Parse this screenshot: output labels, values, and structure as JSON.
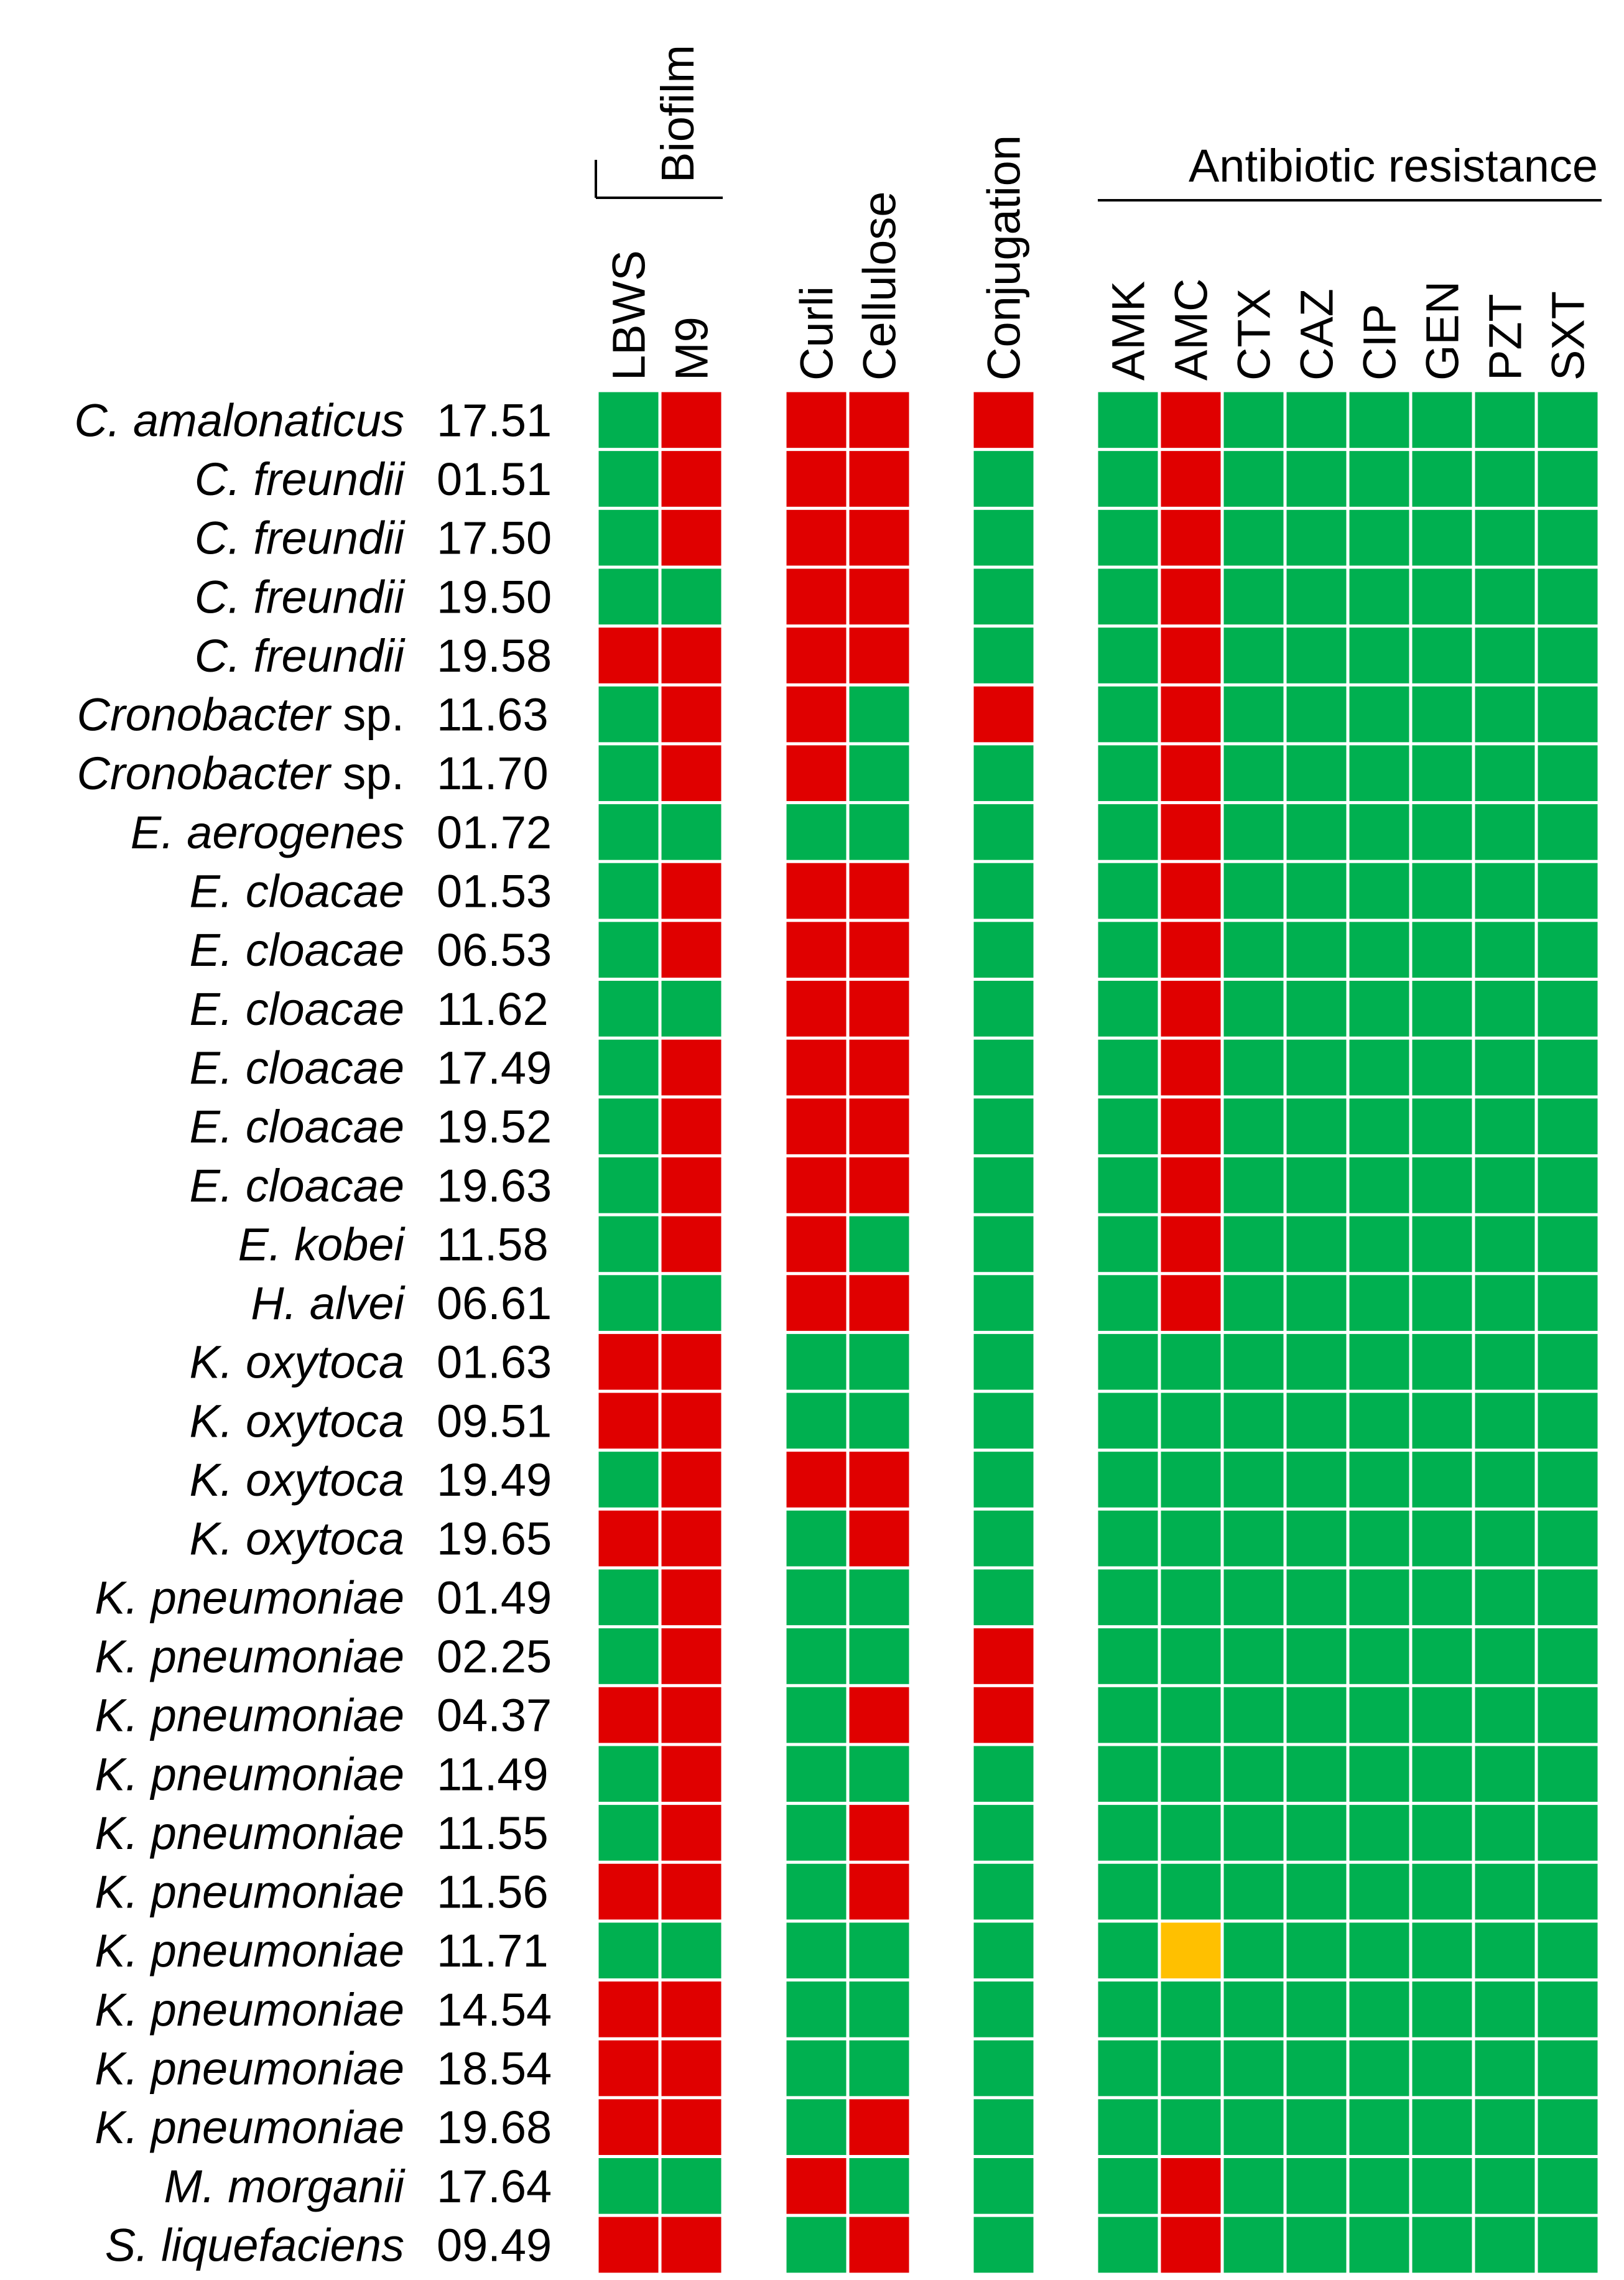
{
  "palette": {
    "green": "#00b050",
    "red": "#e00000",
    "orange": "#ffc000",
    "gridline": "#ffffff",
    "text": "#000000"
  },
  "chart_data": {
    "type": "heatmap",
    "title": "",
    "groups": [
      {
        "name": "Biofilm",
        "columns": [
          "LBWS",
          "M9"
        ]
      },
      {
        "name": "",
        "columns": [
          "Curli",
          "Cellulose"
        ]
      },
      {
        "name": "",
        "columns": [
          "Conjugation"
        ]
      },
      {
        "name": "Antibiotic resistance",
        "columns": [
          "AMK",
          "AMC",
          "CTX",
          "CAZ",
          "CIP",
          "GEN",
          "PZT",
          "SXT"
        ]
      }
    ],
    "legend": {
      "G": "green",
      "R": "red",
      "Y": "orange"
    },
    "rows": [
      {
        "species": "C. amalonaticus",
        "suffix": "",
        "strain": "17.51",
        "values": "GRRRRGRGGGGGG"
      },
      {
        "species": "C. freundii",
        "suffix": "",
        "strain": "01.51",
        "values": "GRRRGGRGGGGGG"
      },
      {
        "species": "C. freundii",
        "suffix": "",
        "strain": "17.50",
        "values": "GRRRGGRGGGGGG"
      },
      {
        "species": "C. freundii",
        "suffix": "",
        "strain": "19.50",
        "values": "GGRRGGRGGGGGG"
      },
      {
        "species": "C. freundii",
        "suffix": "",
        "strain": "19.58",
        "values": "RRRRGGRGGGGGG"
      },
      {
        "species": "Cronobacter",
        "suffix": " sp.",
        "strain": "11.63",
        "values": "GRRGRGRGGGGGG"
      },
      {
        "species": "Cronobacter",
        "suffix": " sp.",
        "strain": "11.70",
        "values": "GRRGGGRGGGGGG"
      },
      {
        "species": "E. aerogenes",
        "suffix": "",
        "strain": "01.72",
        "values": "GGGGGGRGGGGGG"
      },
      {
        "species": "E. cloacae",
        "suffix": "",
        "strain": "01.53",
        "values": "GRRRGGRGGGGGG"
      },
      {
        "species": "E. cloacae",
        "suffix": "",
        "strain": "06.53",
        "values": "GRRRGGRGGGGGG"
      },
      {
        "species": "E. cloacae",
        "suffix": "",
        "strain": "11.62",
        "values": "GGRRGGRGGGGGG"
      },
      {
        "species": "E. cloacae",
        "suffix": "",
        "strain": "17.49",
        "values": "GRRRGGRGGGGGG"
      },
      {
        "species": "E. cloacae",
        "suffix": "",
        "strain": "19.52",
        "values": "GRRRGGRGGGGGG"
      },
      {
        "species": "E. cloacae",
        "suffix": "",
        "strain": "19.63",
        "values": "GRRRGGRGGGGGG"
      },
      {
        "species": "E. kobei",
        "suffix": "",
        "strain": "11.58",
        "values": "GRRGGGRGGGGGG"
      },
      {
        "species": "H. alvei",
        "suffix": "",
        "strain": "06.61",
        "values": "GGRRGGRGGGGGG"
      },
      {
        "species": "K. oxytoca",
        "suffix": "",
        "strain": "01.63",
        "values": "RRGGGGGGGGGGG"
      },
      {
        "species": "K. oxytoca",
        "suffix": "",
        "strain": "09.51",
        "values": "RRGGGGGGGGGGG"
      },
      {
        "species": "K. oxytoca",
        "suffix": "",
        "strain": "19.49",
        "values": "GRRRGGGGGGGGG"
      },
      {
        "species": "K. oxytoca",
        "suffix": "",
        "strain": "19.65",
        "values": "RRGRGGGGGGGGG"
      },
      {
        "species": "K. pneumoniae",
        "suffix": "",
        "strain": "01.49",
        "values": "GRGGGGGGGGGGG"
      },
      {
        "species": "K. pneumoniae",
        "suffix": "",
        "strain": "02.25",
        "values": "GRGGRGGGGGGGG"
      },
      {
        "species": "K. pneumoniae",
        "suffix": "",
        "strain": "04.37",
        "values": "RRGRRGGGGGGGG"
      },
      {
        "species": "K. pneumoniae",
        "suffix": "",
        "strain": "11.49",
        "values": "GRGGGGGGGGGGG"
      },
      {
        "species": "K. pneumoniae",
        "suffix": "",
        "strain": "11.55",
        "values": "GRGRGGGGGGGGG"
      },
      {
        "species": "K. pneumoniae",
        "suffix": "",
        "strain": "11.56",
        "values": "RRGRGGGGGGGGG"
      },
      {
        "species": "K. pneumoniae",
        "suffix": "",
        "strain": "11.71",
        "values": "GGGGGGYGGGGGG"
      },
      {
        "species": "K. pneumoniae",
        "suffix": "",
        "strain": "14.54",
        "values": "RRGGGGGGGGGGG"
      },
      {
        "species": "K. pneumoniae",
        "suffix": "",
        "strain": "18.54",
        "values": "RRGGGGGGGGGGG"
      },
      {
        "species": "K. pneumoniae",
        "suffix": "",
        "strain": "19.68",
        "values": "RRGRGGGGGGGGG"
      },
      {
        "species": "M. morganii",
        "suffix": "",
        "strain": "17.64",
        "values": "GGRGGGRGGGGGG"
      },
      {
        "species": "S. liquefaciens",
        "suffix": "",
        "strain": "09.49",
        "values": "RRGRGGRGGGGGG"
      }
    ]
  }
}
